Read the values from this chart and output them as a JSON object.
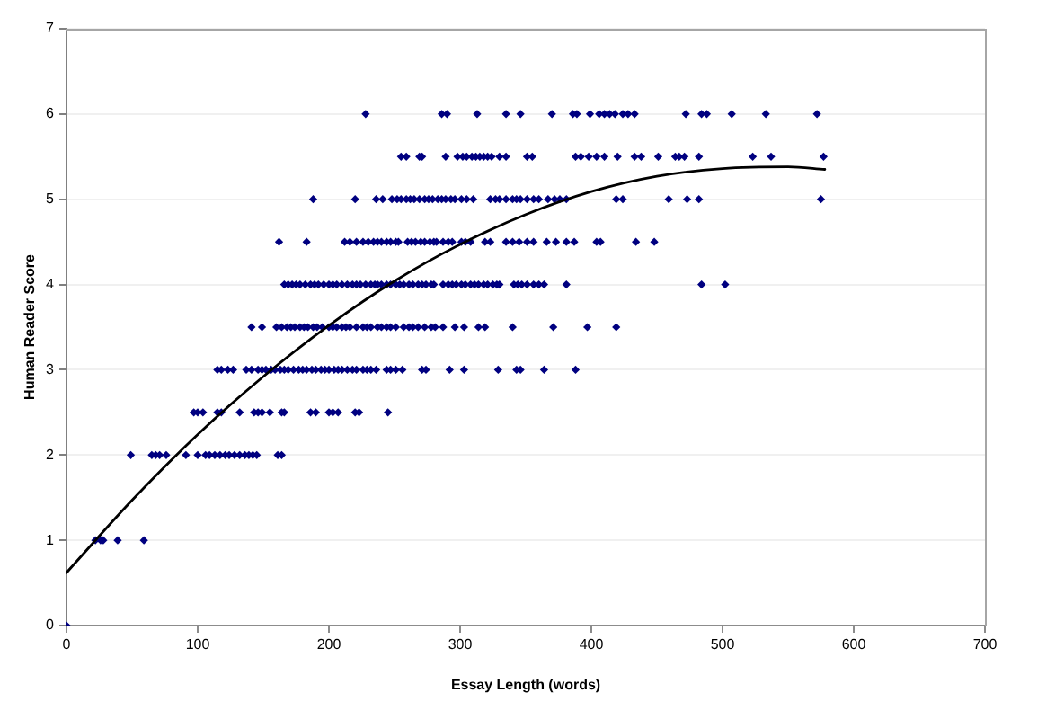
{
  "chart_data": {
    "type": "scatter",
    "xlabel": "Essay Length (words)",
    "ylabel": "Human Reader Score",
    "xlim": [
      0,
      700
    ],
    "xticks": [
      0,
      100,
      200,
      300,
      400,
      500,
      600,
      700
    ],
    "ylim": [
      0,
      7
    ],
    "yticks": [
      0,
      1,
      2,
      3,
      4,
      5,
      6,
      7
    ],
    "grid": "y",
    "series": [
      {
        "type": "scatter",
        "color": "#000080",
        "marker": "diamond",
        "x": [
          0,
          22,
          26,
          28,
          39,
          59,
          49,
          65,
          68,
          71,
          76,
          91,
          100,
          106,
          109,
          113,
          117,
          121,
          124,
          128,
          132,
          136,
          139,
          142,
          145,
          161,
          164,
          97,
          100,
          104,
          115,
          118,
          132,
          143,
          146,
          149,
          155,
          164,
          166,
          186,
          190,
          200,
          203,
          207,
          220,
          223,
          245,
          115,
          118,
          123,
          127,
          137,
          141,
          146,
          149,
          152,
          156,
          159,
          163,
          166,
          169,
          173,
          177,
          180,
          183,
          187,
          190,
          194,
          197,
          200,
          204,
          207,
          210,
          214,
          218,
          221,
          226,
          229,
          232,
          236,
          244,
          247,
          251,
          256,
          271,
          274,
          292,
          303,
          329,
          343,
          346,
          364,
          388,
          141,
          149,
          160,
          164,
          168,
          171,
          174,
          178,
          181,
          184,
          188,
          191,
          195,
          200,
          203,
          206,
          210,
          213,
          216,
          221,
          226,
          229,
          232,
          237,
          240,
          244,
          247,
          251,
          257,
          261,
          264,
          268,
          273,
          278,
          281,
          287,
          296,
          303,
          314,
          319,
          340,
          371,
          397,
          419,
          166,
          169,
          172,
          175,
          178,
          182,
          186,
          189,
          192,
          196,
          200,
          203,
          206,
          210,
          214,
          218,
          221,
          224,
          228,
          232,
          235,
          237,
          240,
          244,
          247,
          251,
          254,
          257,
          261,
          264,
          268,
          271,
          274,
          278,
          280,
          287,
          291,
          294,
          297,
          301,
          304,
          308,
          311,
          314,
          318,
          321,
          325,
          328,
          330,
          341,
          344,
          347,
          351,
          356,
          360,
          364,
          381,
          484,
          502,
          162,
          183,
          212,
          216,
          221,
          226,
          230,
          234,
          237,
          240,
          244,
          247,
          251,
          253,
          260,
          263,
          266,
          270,
          273,
          277,
          280,
          282,
          287,
          291,
          294,
          301,
          304,
          308,
          319,
          323,
          335,
          340,
          345,
          351,
          356,
          366,
          373,
          381,
          387,
          404,
          407,
          434,
          448,
          188,
          220,
          236,
          241,
          248,
          252,
          255,
          259,
          262,
          265,
          269,
          273,
          276,
          279,
          283,
          286,
          289,
          293,
          296,
          301,
          305,
          310,
          323,
          327,
          330,
          335,
          340,
          343,
          346,
          351,
          356,
          360,
          367,
          372,
          376,
          381,
          419,
          424,
          459,
          473,
          482,
          575,
          255,
          259,
          269,
          271,
          289,
          298,
          302,
          305,
          309,
          312,
          315,
          318,
          321,
          324,
          330,
          335,
          351,
          355,
          388,
          392,
          398,
          404,
          410,
          420,
          433,
          438,
          451,
          464,
          467,
          471,
          482,
          523,
          537,
          577,
          228,
          286,
          290,
          313,
          335,
          346,
          370,
          386,
          389,
          399,
          406,
          410,
          414,
          418,
          424,
          428,
          433,
          472,
          484,
          488,
          507,
          533,
          572
        ],
        "values": [
          0,
          1,
          1,
          1,
          1,
          1,
          2,
          2,
          2,
          2,
          2,
          2,
          2,
          2,
          2,
          2,
          2,
          2,
          2,
          2,
          2,
          2,
          2,
          2,
          2,
          2,
          2,
          2.5,
          2.5,
          2.5,
          2.5,
          2.5,
          2.5,
          2.5,
          2.5,
          2.5,
          2.5,
          2.5,
          2.5,
          2.5,
          2.5,
          2.5,
          2.5,
          2.5,
          2.5,
          2.5,
          2.5,
          3,
          3,
          3,
          3,
          3,
          3,
          3,
          3,
          3,
          3,
          3,
          3,
          3,
          3,
          3,
          3,
          3,
          3,
          3,
          3,
          3,
          3,
          3,
          3,
          3,
          3,
          3,
          3,
          3,
          3,
          3,
          3,
          3,
          3,
          3,
          3,
          3,
          3,
          3,
          3,
          3,
          3,
          3,
          3,
          3,
          3,
          3.5,
          3.5,
          3.5,
          3.5,
          3.5,
          3.5,
          3.5,
          3.5,
          3.5,
          3.5,
          3.5,
          3.5,
          3.5,
          3.5,
          3.5,
          3.5,
          3.5,
          3.5,
          3.5,
          3.5,
          3.5,
          3.5,
          3.5,
          3.5,
          3.5,
          3.5,
          3.5,
          3.5,
          3.5,
          3.5,
          3.5,
          3.5,
          3.5,
          3.5,
          3.5,
          3.5,
          3.5,
          3.5,
          3.5,
          3.5,
          3.5,
          3.5,
          3.5,
          3.5,
          4,
          4,
          4,
          4,
          4,
          4,
          4,
          4,
          4,
          4,
          4,
          4,
          4,
          4,
          4,
          4,
          4,
          4,
          4,
          4,
          4,
          4,
          4,
          4,
          4,
          4,
          4,
          4,
          4,
          4,
          4,
          4,
          4,
          4,
          4,
          4,
          4,
          4,
          4,
          4,
          4,
          4,
          4,
          4,
          4,
          4,
          4,
          4,
          4,
          4,
          4,
          4,
          4,
          4,
          4,
          4,
          4,
          4,
          4,
          4.5,
          4.5,
          4.5,
          4.5,
          4.5,
          4.5,
          4.5,
          4.5,
          4.5,
          4.5,
          4.5,
          4.5,
          4.5,
          4.5,
          4.5,
          4.5,
          4.5,
          4.5,
          4.5,
          4.5,
          4.5,
          4.5,
          4.5,
          4.5,
          4.5,
          4.5,
          4.5,
          4.5,
          4.5,
          4.5,
          4.5,
          4.5,
          4.5,
          4.5,
          4.5,
          4.5,
          4.5,
          4.5,
          4.5,
          4.5,
          4.5,
          4.5,
          4.5,
          5,
          5,
          5,
          5,
          5,
          5,
          5,
          5,
          5,
          5,
          5,
          5,
          5,
          5,
          5,
          5,
          5,
          5,
          5,
          5,
          5,
          5,
          5,
          5,
          5,
          5,
          5,
          5,
          5,
          5,
          5,
          5,
          5,
          5,
          5,
          5,
          5,
          5,
          5,
          5,
          5,
          5,
          5.5,
          5.5,
          5.5,
          5.5,
          5.5,
          5.5,
          5.5,
          5.5,
          5.5,
          5.5,
          5.5,
          5.5,
          5.5,
          5.5,
          5.5,
          5.5,
          5.5,
          5.5,
          5.5,
          5.5,
          5.5,
          5.5,
          5.5,
          5.5,
          5.5,
          5.5,
          5.5,
          5.5,
          5.5,
          5.5,
          5.5,
          5.5,
          5.5,
          5.5,
          6,
          6,
          6,
          6,
          6,
          6,
          6,
          6,
          6,
          6,
          6,
          6,
          6,
          6,
          6,
          6,
          6,
          6,
          6,
          6,
          6,
          6,
          6
        ]
      },
      {
        "type": "line",
        "color": "#000000",
        "marker": "none",
        "line_style": "solid",
        "x": [
          0,
          50,
          100,
          150,
          200,
          250,
          300,
          350,
          400,
          450,
          500,
          550,
          578
        ],
        "values": [
          0.62,
          1.47,
          2.24,
          2.92,
          3.52,
          4.04,
          4.47,
          4.82,
          5.09,
          5.27,
          5.36,
          5.38,
          5.35
        ]
      }
    ]
  }
}
